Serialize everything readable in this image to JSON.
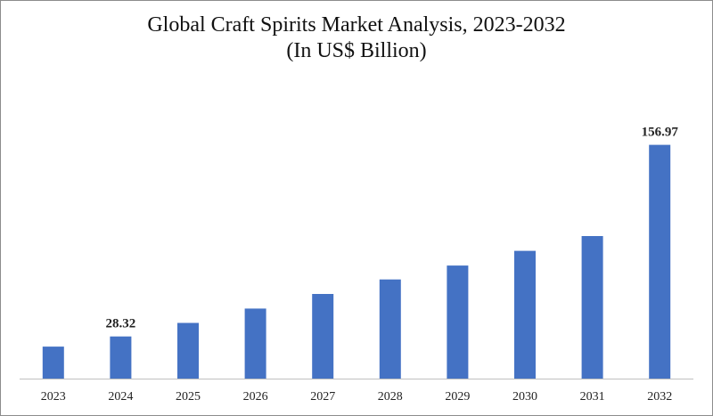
{
  "chart_data": {
    "type": "bar",
    "title": "Global Craft Spirits Market Analysis, 2023-2032",
    "subtitle": "(In US$ Billion)",
    "categories": [
      "2023",
      "2024",
      "2025",
      "2026",
      "2027",
      "2028",
      "2029",
      "2030",
      "2031",
      "2032"
    ],
    "values": [
      21.5,
      28.32,
      37.4,
      47.0,
      56.8,
      66.6,
      75.9,
      85.8,
      95.7,
      156.97
    ],
    "data_labels": [
      {
        "category": "2024",
        "text": "28.32"
      },
      {
        "category": "2032",
        "text": "156.97"
      }
    ],
    "ylim": [
      0,
      166.9
    ],
    "bar_color": "#4472c4",
    "grid": false,
    "legend": "none"
  }
}
